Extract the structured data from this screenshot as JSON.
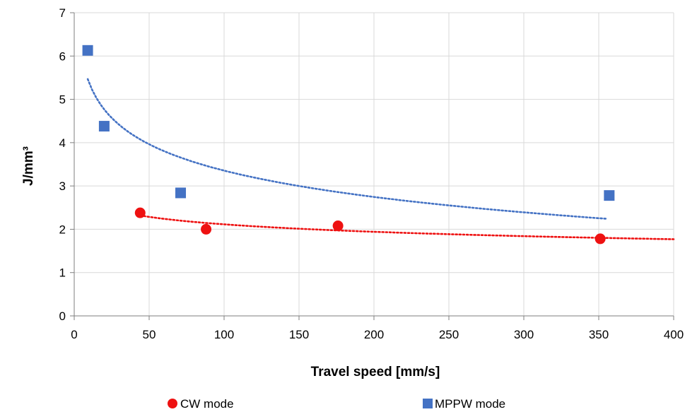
{
  "chart_data": {
    "type": "scatter",
    "title": "",
    "xlabel": "Travel speed [mm/s]",
    "ylabel": "J/mm³",
    "xlim": [
      0,
      400
    ],
    "ylim": [
      0,
      7
    ],
    "x_ticks": [
      "0",
      "50",
      "100",
      "150",
      "200",
      "250",
      "300",
      "350",
      "400"
    ],
    "y_ticks": [
      "0",
      "1",
      "2",
      "3",
      "4",
      "5",
      "6",
      "7"
    ],
    "grid": true,
    "legend_position": "bottom",
    "series": [
      {
        "name": "CW mode",
        "marker": "circle",
        "color": "#ee1111",
        "points": [
          [
            44,
            2.38
          ],
          [
            88,
            2.0
          ],
          [
            176,
            2.08
          ],
          [
            351,
            1.78
          ]
        ],
        "trendline": {
          "type": "logarithmic",
          "style": "dotted",
          "x_range": [
            44,
            400
          ]
        }
      },
      {
        "name": "MPPW mode",
        "marker": "square",
        "color": "#4472c4",
        "points": [
          [
            9,
            6.13
          ],
          [
            20,
            4.38
          ],
          [
            71,
            2.84
          ],
          [
            357,
            2.78
          ]
        ],
        "trendline": {
          "type": "logarithmic",
          "style": "dotted",
          "x_range": [
            9,
            355
          ]
        }
      }
    ]
  }
}
